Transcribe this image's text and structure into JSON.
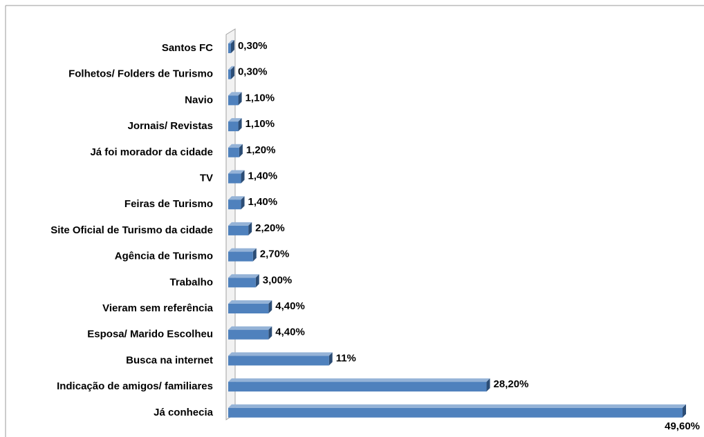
{
  "chart_data": {
    "type": "bar",
    "orientation": "horizontal",
    "color": "#4f81bd",
    "categories": [
      "Santos FC",
      "Folhetos/ Folders de Turismo",
      "Navio",
      "Jornais/ Revistas",
      "Já foi morador da cidade",
      "TV",
      "Feiras de Turismo",
      "Site Oficial de Turismo da cidade",
      "Agência de Turismo",
      "Trabalho",
      "Vieram sem referência",
      "Esposa/ Marido Escolheu",
      "Busca na internet",
      "Indicação de amigos/ familiares",
      "Já conhecia"
    ],
    "values": [
      0.3,
      0.3,
      1.1,
      1.1,
      1.2,
      1.4,
      1.4,
      2.2,
      2.7,
      3.0,
      4.4,
      4.4,
      11,
      28.2,
      49.6
    ],
    "value_labels": [
      "0,30%",
      "0,30%",
      "1,10%",
      "1,10%",
      "1,20%",
      "1,40%",
      "1,40%",
      "2,20%",
      "2,70%",
      "3,00%",
      "4,40%",
      "4,40%",
      "11%",
      "28,20%",
      "49,60%"
    ]
  }
}
